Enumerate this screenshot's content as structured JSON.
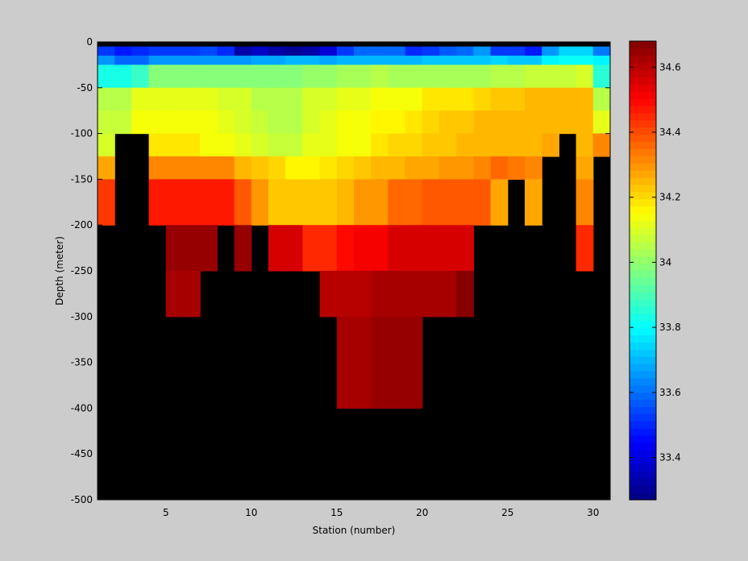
{
  "chart_data": {
    "type": "heatmap",
    "title": "",
    "xlabel": "Station (number)",
    "ylabel": "Depth (meter)",
    "xlim": [
      1,
      31
    ],
    "ylim": [
      -500,
      0
    ],
    "x_ticks": [
      5,
      10,
      15,
      20,
      25,
      30
    ],
    "y_ticks": [
      0,
      -50,
      -100,
      -150,
      -200,
      -250,
      -300,
      -350,
      -400,
      -450,
      -500
    ],
    "background_color": "#000000",
    "colorbar": {
      "label": "",
      "range": [
        33.27,
        34.68
      ],
      "ticks": [
        33.4,
        33.6,
        33.8,
        34,
        34.2,
        34.4,
        34.6
      ],
      "colormap": "jet"
    },
    "stations": [
      1,
      2,
      3,
      4,
      5,
      6,
      7,
      8,
      9,
      10,
      11,
      12,
      13,
      14,
      15,
      16,
      17,
      18,
      19,
      20,
      21,
      22,
      23,
      24,
      25,
      26,
      27,
      28,
      29,
      30
    ],
    "depth_layers": [
      {
        "top": 0,
        "bottom": -5
      },
      {
        "top": -5,
        "bottom": -15
      },
      {
        "top": -15,
        "bottom": -25
      },
      {
        "top": -25,
        "bottom": -50
      },
      {
        "top": -50,
        "bottom": -75
      },
      {
        "top": -75,
        "bottom": -100
      },
      {
        "top": -100,
        "bottom": -125
      },
      {
        "top": -125,
        "bottom": -150
      },
      {
        "top": -150,
        "bottom": -200
      },
      {
        "top": -200,
        "bottom": -250
      },
      {
        "top": -250,
        "bottom": -300
      },
      {
        "top": -300,
        "bottom": -400
      }
    ],
    "values": [
      [
        null,
        null,
        null,
        null,
        null,
        null,
        null,
        null,
        null,
        null,
        null,
        null,
        null,
        null,
        null,
        null,
        null,
        null,
        null,
        null,
        null,
        null,
        null,
        null,
        null,
        null,
        null,
        null,
        null,
        null
      ],
      [
        33.52,
        33.48,
        33.5,
        33.53,
        33.53,
        33.53,
        33.55,
        33.5,
        33.33,
        33.38,
        33.32,
        33.3,
        33.32,
        33.4,
        33.52,
        33.6,
        33.6,
        33.58,
        33.5,
        33.52,
        33.56,
        33.6,
        33.66,
        33.53,
        33.52,
        33.48,
        33.66,
        33.75,
        33.75,
        33.62
      ],
      [
        33.65,
        33.6,
        33.6,
        33.65,
        33.65,
        33.65,
        33.66,
        33.66,
        33.65,
        33.68,
        33.68,
        33.7,
        33.7,
        33.68,
        33.7,
        33.7,
        33.7,
        33.7,
        33.7,
        33.72,
        33.72,
        33.72,
        33.72,
        33.74,
        33.72,
        33.72,
        33.78,
        33.82,
        33.82,
        33.78
      ],
      [
        33.83,
        33.83,
        33.88,
        33.98,
        33.98,
        33.98,
        33.98,
        33.98,
        33.98,
        33.98,
        33.98,
        33.98,
        34.0,
        34.0,
        34.02,
        34.02,
        34.05,
        34.02,
        34.02,
        34.02,
        34.02,
        34.03,
        34.03,
        34.05,
        34.05,
        34.08,
        34.08,
        34.08,
        34.1,
        33.85
      ],
      [
        34.05,
        34.05,
        34.12,
        34.12,
        34.12,
        34.12,
        34.12,
        34.1,
        34.1,
        34.06,
        34.06,
        34.06,
        34.1,
        34.1,
        34.12,
        34.12,
        34.14,
        34.14,
        34.15,
        34.18,
        34.18,
        34.18,
        34.2,
        34.22,
        34.22,
        34.25,
        34.25,
        34.25,
        34.25,
        34.05
      ],
      [
        34.08,
        34.08,
        34.14,
        34.15,
        34.15,
        34.15,
        34.13,
        34.12,
        34.1,
        34.08,
        34.06,
        34.06,
        34.1,
        34.12,
        34.14,
        34.14,
        34.16,
        34.16,
        34.18,
        34.2,
        34.22,
        34.22,
        34.25,
        34.25,
        34.25,
        34.25,
        34.25,
        34.25,
        34.25,
        34.12
      ],
      [
        34.1,
        null,
        null,
        34.18,
        34.18,
        34.18,
        34.14,
        34.13,
        34.12,
        34.1,
        34.08,
        34.08,
        34.12,
        34.12,
        34.15,
        34.15,
        34.18,
        34.2,
        34.2,
        34.22,
        34.22,
        34.25,
        34.25,
        34.26,
        34.26,
        34.26,
        34.28,
        null,
        34.25,
        34.32
      ],
      [
        34.28,
        null,
        null,
        34.32,
        34.32,
        34.32,
        34.32,
        34.32,
        34.26,
        34.22,
        34.2,
        34.16,
        34.16,
        34.18,
        34.2,
        34.22,
        34.24,
        34.26,
        34.28,
        34.28,
        34.3,
        34.3,
        34.32,
        34.35,
        34.34,
        34.32,
        null,
        null,
        34.28,
        null
      ],
      [
        34.42,
        null,
        null,
        34.48,
        34.48,
        34.48,
        34.48,
        34.48,
        34.38,
        34.3,
        34.22,
        34.22,
        34.22,
        34.22,
        34.25,
        34.3,
        34.3,
        34.35,
        34.35,
        34.38,
        34.38,
        34.38,
        34.38,
        34.28,
        null,
        34.28,
        null,
        null,
        34.32,
        null
      ],
      [
        null,
        null,
        null,
        null,
        34.65,
        34.65,
        34.65,
        null,
        34.65,
        null,
        34.55,
        34.55,
        34.45,
        34.45,
        34.5,
        34.52,
        34.52,
        34.55,
        34.55,
        34.55,
        34.55,
        34.55,
        null,
        null,
        null,
        null,
        null,
        null,
        34.45,
        null
      ],
      [
        null,
        null,
        null,
        null,
        34.62,
        34.62,
        null,
        null,
        null,
        null,
        null,
        null,
        null,
        34.6,
        34.6,
        34.6,
        34.62,
        34.62,
        34.62,
        34.62,
        34.62,
        34.68,
        null,
        null,
        null,
        null,
        null,
        null,
        null,
        null
      ],
      [
        null,
        null,
        null,
        null,
        null,
        null,
        null,
        null,
        null,
        null,
        null,
        null,
        null,
        null,
        34.62,
        34.62,
        34.65,
        34.65,
        34.65,
        null,
        null,
        null,
        null,
        null,
        null,
        null,
        null,
        null,
        null,
        null
      ]
    ]
  }
}
